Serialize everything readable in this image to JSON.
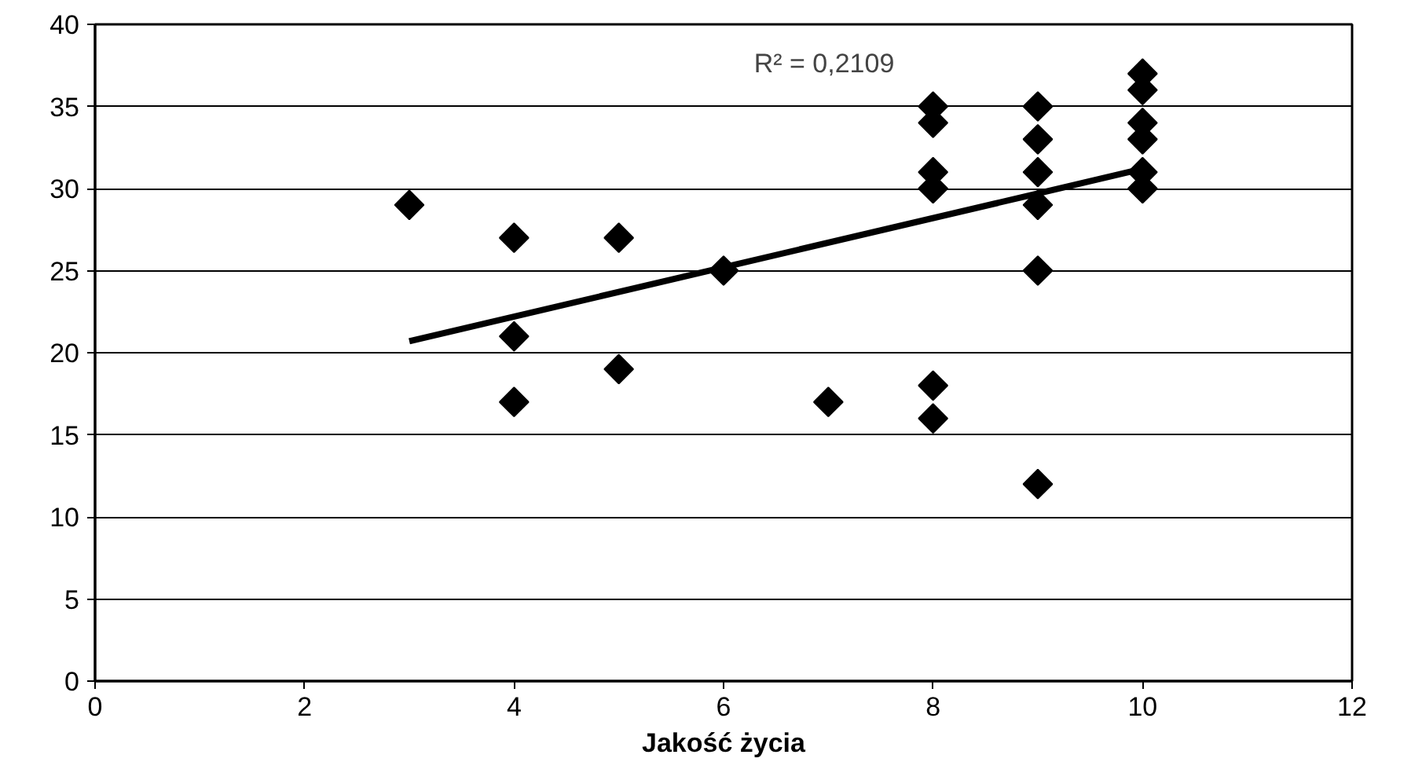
{
  "chart_data": {
    "type": "scatter",
    "xlabel": "Jakość życia",
    "marker": "diamond",
    "grid": "y",
    "xlim": [
      0,
      12
    ],
    "xticks": [
      0,
      2,
      4,
      6,
      8,
      10,
      12
    ],
    "ylim": [
      0,
      40
    ],
    "yticks": [
      0,
      5,
      10,
      15,
      20,
      25,
      30,
      35,
      40
    ],
    "annotations": [
      "R² = 0,2109"
    ],
    "series": [
      {
        "color": "#000000",
        "x": [
          3,
          4,
          4,
          4,
          5,
          5,
          6,
          7,
          8,
          8,
          8,
          8,
          8,
          8,
          9,
          9,
          9,
          9,
          9,
          9,
          10,
          10,
          10,
          10,
          10,
          10
        ],
        "values": [
          29,
          27,
          21,
          17,
          27,
          19,
          25,
          17,
          35,
          34,
          31,
          30,
          18,
          16,
          35,
          33,
          31,
          29,
          25,
          12,
          37,
          36,
          34,
          33,
          31,
          30
        ]
      },
      {
        "type": "line",
        "marker": "none",
        "color": "#000000",
        "x": [
          3,
          10
        ],
        "values": [
          20.7,
          31.2
        ]
      }
    ]
  }
}
